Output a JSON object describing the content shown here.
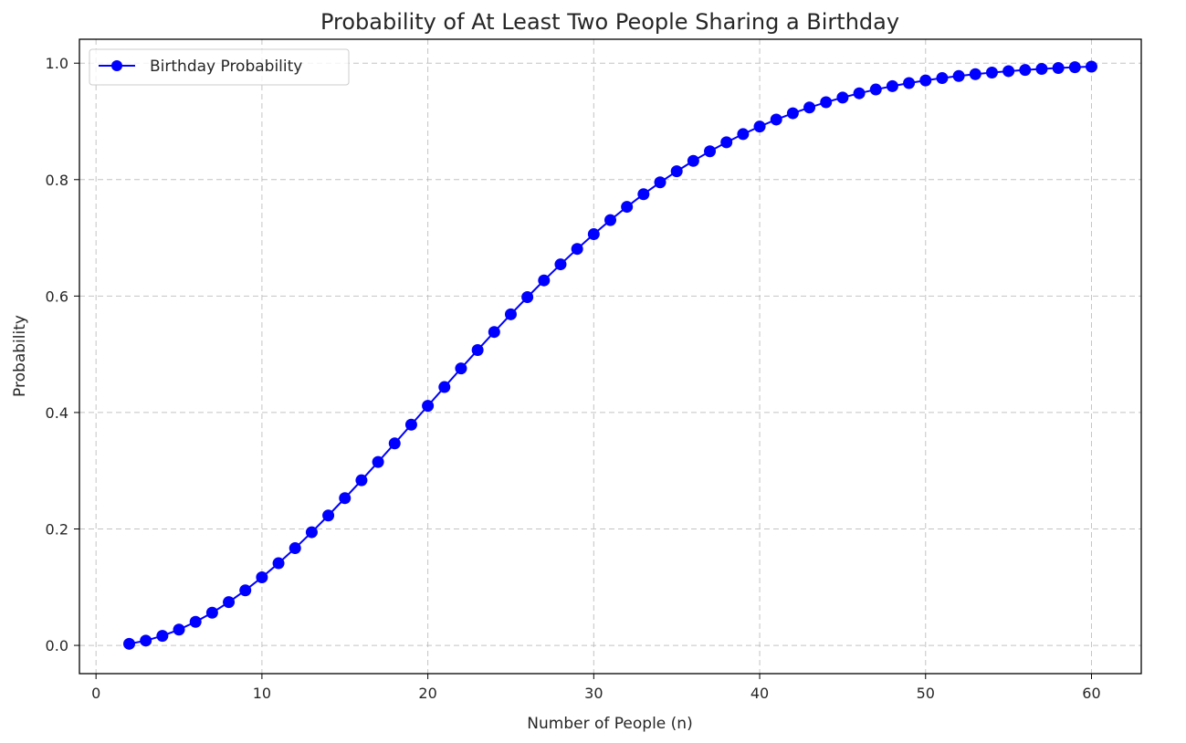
{
  "chart_data": {
    "type": "line",
    "title": "Probability of At Least Two People Sharing a Birthday",
    "xlabel": "Number of People (n)",
    "ylabel": "Probability",
    "xlim": [
      -1,
      63
    ],
    "ylim": [
      -0.0485,
      1.0411
    ],
    "x_ticks": [
      0,
      10,
      20,
      30,
      40,
      50,
      60
    ],
    "y_ticks": [
      0.0,
      0.2,
      0.4,
      0.6,
      0.8,
      1.0
    ],
    "x_tick_labels": [
      "0",
      "10",
      "20",
      "30",
      "40",
      "50",
      "60"
    ],
    "y_tick_labels": [
      "0.0",
      "0.2",
      "0.4",
      "0.6",
      "0.8",
      "1.0"
    ],
    "grid": true,
    "legend_position": "top-left",
    "series": [
      {
        "name": "Birthday Probability",
        "color": "#0000ff",
        "marker": "circle",
        "x": [
          2,
          3,
          4,
          5,
          6,
          7,
          8,
          9,
          10,
          11,
          12,
          13,
          14,
          15,
          16,
          17,
          18,
          19,
          20,
          21,
          22,
          23,
          24,
          25,
          26,
          27,
          28,
          29,
          30,
          31,
          32,
          33,
          34,
          35,
          36,
          37,
          38,
          39,
          40,
          41,
          42,
          43,
          44,
          45,
          46,
          47,
          48,
          49,
          50,
          51,
          52,
          53,
          54,
          55,
          56,
          57,
          58,
          59,
          60
        ],
        "y": [
          0.0027,
          0.0082,
          0.0164,
          0.0271,
          0.0405,
          0.0562,
          0.0743,
          0.0946,
          0.1169,
          0.1411,
          0.167,
          0.1944,
          0.2231,
          0.2529,
          0.2836,
          0.315,
          0.3469,
          0.3791,
          0.4114,
          0.4437,
          0.4757,
          0.5073,
          0.5383,
          0.5687,
          0.5982,
          0.6269,
          0.6545,
          0.681,
          0.7063,
          0.7305,
          0.7533,
          0.775,
          0.7953,
          0.8144,
          0.8322,
          0.8487,
          0.8641,
          0.8782,
          0.8912,
          0.9032,
          0.914,
          0.9239,
          0.9329,
          0.941,
          0.9483,
          0.9548,
          0.9606,
          0.9658,
          0.9704,
          0.9744,
          0.978,
          0.9811,
          0.9839,
          0.9863,
          0.9883,
          0.9901,
          0.9917,
          0.993,
          0.9941
        ]
      }
    ]
  }
}
